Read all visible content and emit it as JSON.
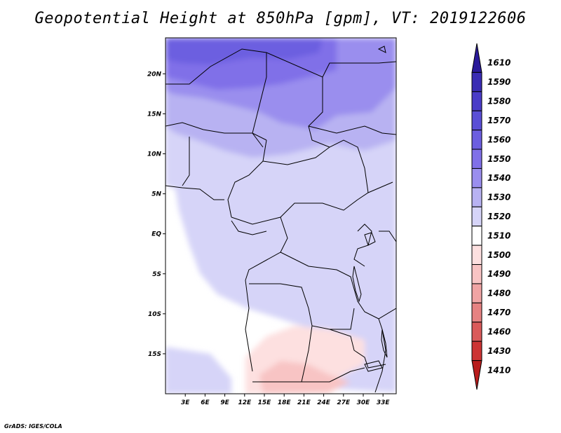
{
  "title": "Geopotential Height at 850hPa [gpm], VT: 2019122606",
  "credit": "GrADS: IGES/COLA",
  "map": {
    "lon_range": [
      0,
      35
    ],
    "lat_range": [
      -20,
      24.5
    ],
    "lon_ticks": [
      "3E",
      "6E",
      "9E",
      "12E",
      "15E",
      "18E",
      "21E",
      "24E",
      "27E",
      "30E",
      "33E"
    ],
    "lat_ticks": [
      "20N",
      "15N",
      "10N",
      "5N",
      "EQ",
      "5S",
      "10S",
      "15S"
    ]
  },
  "legend": {
    "levels": [
      "1610",
      "1590",
      "1580",
      "1570",
      "1560",
      "1550",
      "1540",
      "1530",
      "1520",
      "1510",
      "1500",
      "1490",
      "1480",
      "1470",
      "1460",
      "1430",
      "1410"
    ],
    "colors": [
      "#2a1a9a",
      "#3a2cb4",
      "#4a3cc8",
      "#5a4ed6",
      "#6c5ee0",
      "#8070e8",
      "#9a8eee",
      "#b8b2f2",
      "#d6d4f8",
      "#ffffff",
      "#fde0e0",
      "#f8c4c4",
      "#f0a4a4",
      "#e68282",
      "#da5a5a",
      "#cc3434",
      "#b81c1c"
    ]
  }
}
